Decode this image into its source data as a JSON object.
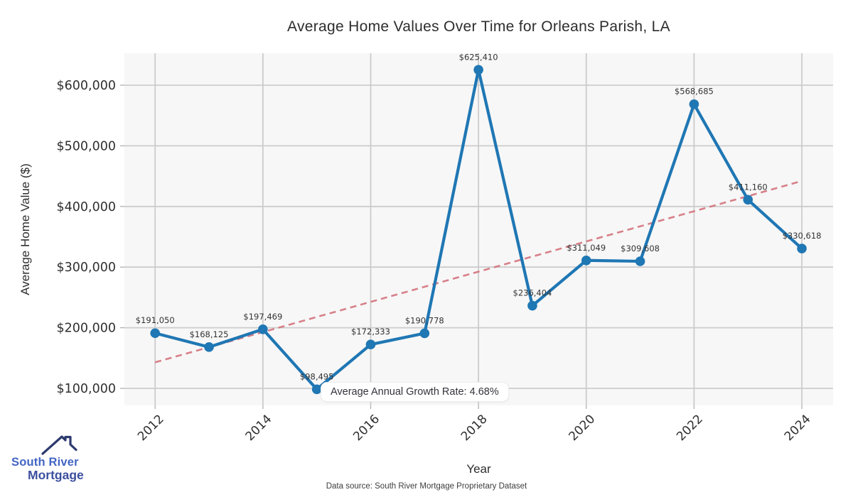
{
  "footer": {
    "text": "Data source: South River Mortgage Proprietary Dataset"
  },
  "logo": {
    "name_top": "South River",
    "name_bottom": "Mortgage"
  },
  "chart_data": {
    "type": "line",
    "title": "Average Home Values Over Time for Orleans Parish, LA",
    "xlabel": "Year",
    "ylabel": "Average Home Value ($)",
    "x": [
      2012,
      2013,
      2014,
      2015,
      2016,
      2017,
      2018,
      2019,
      2020,
      2021,
      2022,
      2023,
      2024
    ],
    "series": [
      {
        "name": "Average Home Value",
        "values": [
          191050,
          168125,
          197469,
          98495,
          172333,
          190778,
          625410,
          236404,
          311049,
          309608,
          568685,
          411160,
          330618
        ],
        "color": "#1f77b4",
        "marker": "circle"
      }
    ],
    "point_labels": [
      "$191,050",
      "$168,125",
      "$197,469",
      "$98,495",
      "$172,333",
      "$190,778",
      "$625,410",
      "$236,404",
      "$311,049",
      "$309,608",
      "$568,685",
      "$411,160",
      "$330,618"
    ],
    "trendline": {
      "name": "linear-trend",
      "x": [
        2012,
        2024
      ],
      "values": [
        143000,
        442000
      ],
      "color": "#d4747e",
      "dashed": true
    },
    "annotation": {
      "text": "Average Annual Growth Rate: 4.68%",
      "anchor_x": 2015,
      "anchor_y": 98495
    },
    "xticks": [
      2012,
      2014,
      2016,
      2018,
      2020,
      2022,
      2024
    ],
    "yticks": [
      100000,
      200000,
      300000,
      400000,
      500000,
      600000
    ],
    "ytick_labels": [
      "$100,000",
      "$200,000",
      "$300,000",
      "$400,000",
      "$500,000",
      "$600,000"
    ],
    "xlim": [
      2011.43,
      2024.58
    ],
    "ylim": [
      71900,
      652700
    ],
    "grid": true,
    "legend": "none",
    "plot_bg": "#f7f7f7",
    "grid_color": "#cccccc",
    "tick_color": "#aaaaaa",
    "label_color": "#333333",
    "tick_label_color": "#2f2f2f"
  }
}
